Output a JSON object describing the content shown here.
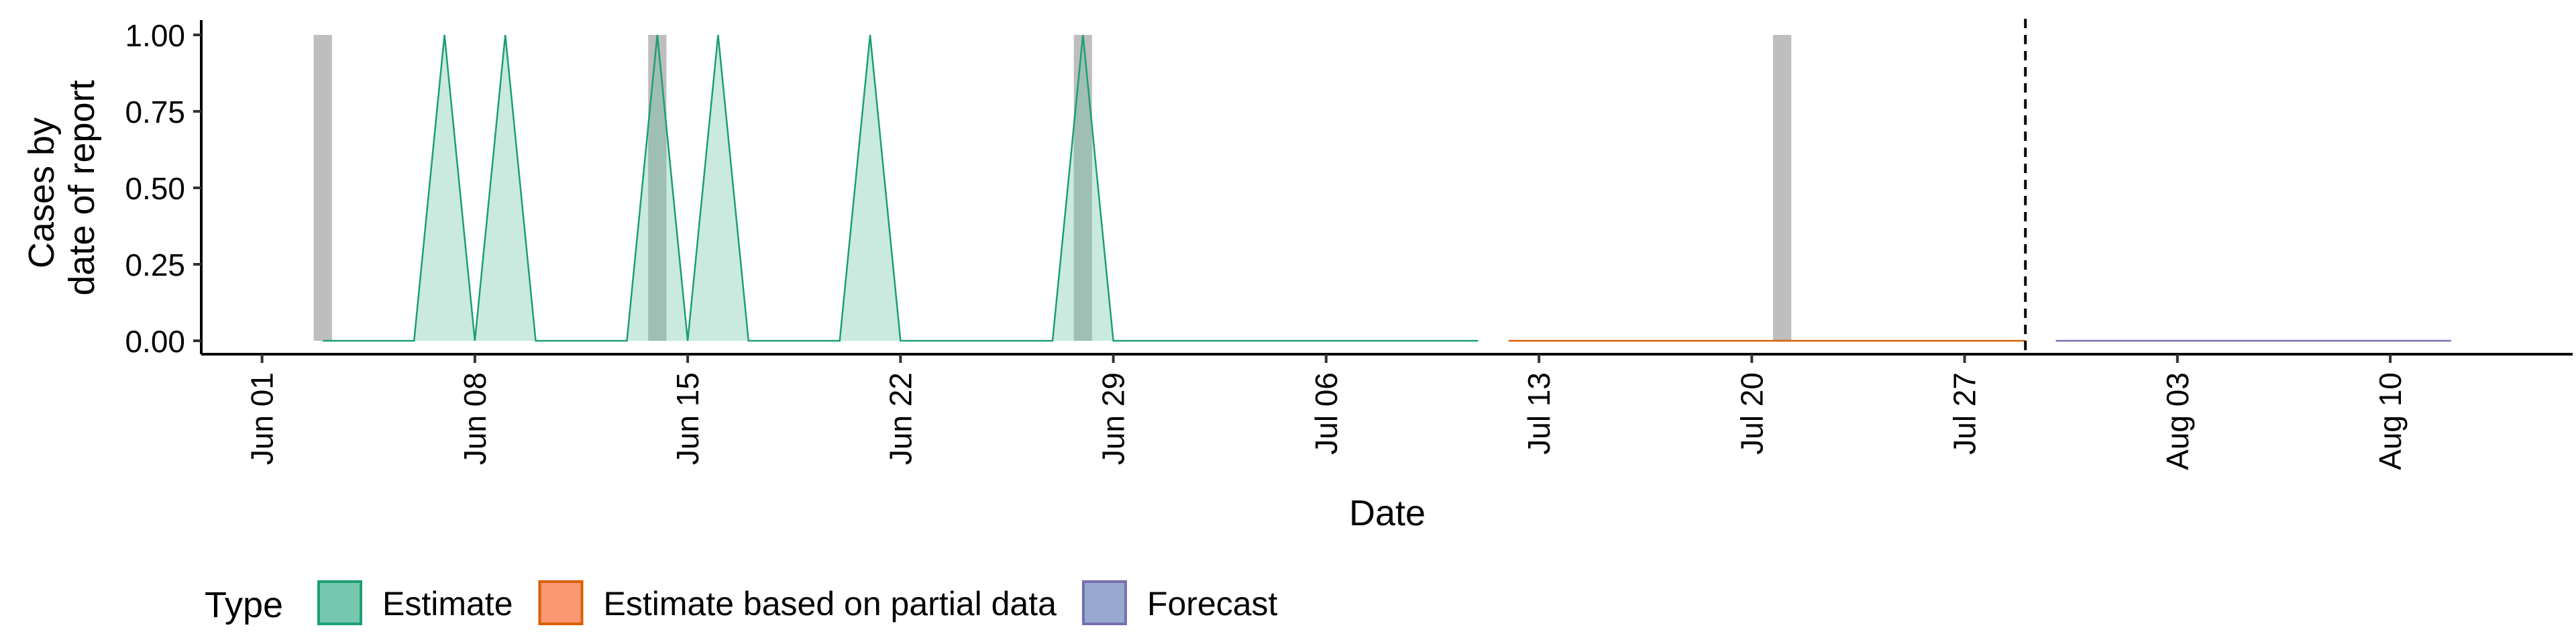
{
  "chart_data": {
    "type": "area",
    "xlabel": "Date",
    "ylabel_lines": [
      "Cases by",
      "date of report"
    ],
    "ylim": [
      0,
      1
    ],
    "y_ticks": [
      0,
      0.25,
      0.5,
      0.75,
      1
    ],
    "y_tick_labels": [
      "0.00",
      "0.25",
      "0.50",
      "0.75",
      "1.00"
    ],
    "x_ticks": [
      "2020-06-01",
      "2020-06-08",
      "2020-06-15",
      "2020-06-22",
      "2020-06-29",
      "2020-07-06",
      "2020-07-13",
      "2020-07-20",
      "2020-07-27",
      "2020-08-03",
      "2020-08-10"
    ],
    "x_tick_labels": [
      "Jun 01",
      "Jun 08",
      "Jun 15",
      "Jun 22",
      "Jun 29",
      "Jul 06",
      "Jul 13",
      "Jul 20",
      "Jul 27",
      "Aug 03",
      "Aug 10"
    ],
    "x_range": [
      "2020-05-30",
      "2020-08-16"
    ],
    "reported_cases": [
      {
        "date": "2020-06-03",
        "value": 1
      },
      {
        "date": "2020-06-14",
        "value": 1
      },
      {
        "date": "2020-06-28",
        "value": 1
      },
      {
        "date": "2020-07-21",
        "value": 1
      }
    ],
    "series": [
      {
        "name": "Estimate",
        "color": "#1b9e77",
        "fill": "#66c2a5",
        "points": [
          {
            "date": "2020-06-03",
            "value": 0
          },
          {
            "date": "2020-06-06",
            "value": 0
          },
          {
            "date": "2020-06-07",
            "value": 1
          },
          {
            "date": "2020-06-08",
            "value": 0
          },
          {
            "date": "2020-06-09",
            "value": 1
          },
          {
            "date": "2020-06-10",
            "value": 0
          },
          {
            "date": "2020-06-13",
            "value": 0
          },
          {
            "date": "2020-06-14",
            "value": 1
          },
          {
            "date": "2020-06-15",
            "value": 0
          },
          {
            "date": "2020-06-16",
            "value": 1
          },
          {
            "date": "2020-06-17",
            "value": 0
          },
          {
            "date": "2020-06-20",
            "value": 0
          },
          {
            "date": "2020-06-21",
            "value": 1
          },
          {
            "date": "2020-06-22",
            "value": 0
          },
          {
            "date": "2020-06-27",
            "value": 0
          },
          {
            "date": "2020-06-28",
            "value": 1
          },
          {
            "date": "2020-06-29",
            "value": 0
          },
          {
            "date": "2020-07-11",
            "value": 0
          }
        ]
      },
      {
        "name": "Estimate based on partial data",
        "color": "#d95f02",
        "fill": "#fc8d62",
        "points": [
          {
            "date": "2020-07-12",
            "value": 0
          },
          {
            "date": "2020-07-29",
            "value": 0
          }
        ]
      },
      {
        "name": "Forecast",
        "color": "#7570b3",
        "fill": "#8da0cb",
        "points": [
          {
            "date": "2020-07-30",
            "value": 0
          },
          {
            "date": "2020-08-12",
            "value": 0
          }
        ]
      }
    ],
    "forecast_start_line": "2020-07-29",
    "legend": {
      "title": "Type",
      "placement": "bottom",
      "entries": [
        "Estimate",
        "Estimate based on partial data",
        "Forecast"
      ]
    },
    "grid": false
  }
}
